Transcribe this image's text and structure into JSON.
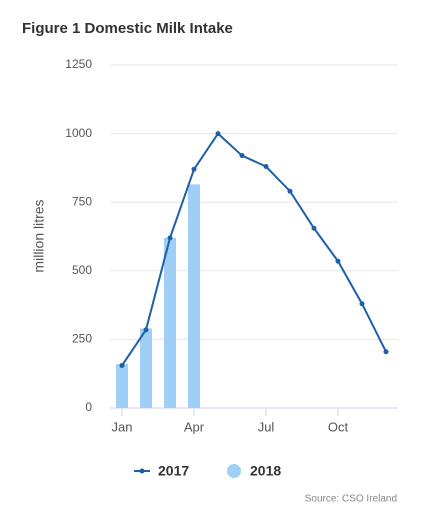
{
  "chart_data": {
    "type": "bar",
    "title": "Figure 1 Domestic Milk Intake",
    "ylabel": "million litres",
    "source": "Source: CSO Ireland",
    "categories": [
      "Jan",
      null,
      null,
      "Apr",
      null,
      null,
      "Jul",
      null,
      null,
      "Oct",
      null,
      null
    ],
    "series": [
      {
        "name": "2017",
        "type": "line",
        "color": "#1f5fa8",
        "values": [
          155,
          285,
          620,
          870,
          1000,
          920,
          880,
          790,
          655,
          535,
          380,
          205
        ]
      },
      {
        "name": "2018",
        "type": "bar",
        "color": "#9fcff7",
        "values": [
          160,
          290,
          620,
          815,
          null,
          null,
          null,
          null,
          null,
          null,
          null,
          null
        ]
      }
    ],
    "ylim": [
      0,
      1250
    ],
    "yticks": [
      0,
      250,
      500,
      750,
      1000,
      1250
    ],
    "grid": true
  }
}
